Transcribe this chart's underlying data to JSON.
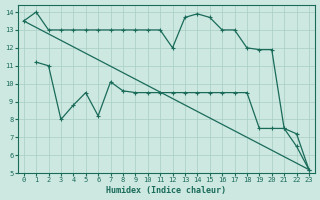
{
  "xlabel": "Humidex (Indice chaleur)",
  "bg_color": "#cce8e0",
  "line_color": "#1a6b5a",
  "grid_color": "#a8cec4",
  "xlim": [
    -0.5,
    23.5
  ],
  "ylim": [
    5,
    14.4
  ],
  "xticks": [
    0,
    1,
    2,
    3,
    4,
    5,
    6,
    7,
    8,
    9,
    10,
    11,
    12,
    13,
    14,
    15,
    16,
    17,
    18,
    19,
    20,
    21,
    22,
    23
  ],
  "yticks": [
    5,
    6,
    7,
    8,
    9,
    10,
    11,
    12,
    13,
    14
  ],
  "line1_x": [
    0,
    1,
    2,
    3,
    4,
    5,
    6,
    7,
    8,
    9,
    10,
    11,
    12,
    13,
    14,
    15,
    16,
    17,
    18,
    19,
    20,
    21,
    22,
    23
  ],
  "line1_y": [
    13.5,
    14.0,
    13.0,
    13.0,
    13.0,
    13.0,
    13.0,
    13.0,
    13.0,
    13.0,
    13.0,
    13.0,
    12.0,
    13.7,
    13.9,
    13.7,
    13.0,
    13.0,
    12.0,
    11.9,
    11.9,
    7.5,
    6.5,
    5.2
  ],
  "line2_x": [
    1,
    2,
    3,
    4,
    5,
    6,
    7,
    8,
    9,
    10,
    11,
    12,
    13,
    14,
    15,
    16,
    17,
    18,
    19,
    20,
    21,
    22,
    23
  ],
  "line2_y": [
    11.2,
    11.0,
    8.0,
    8.8,
    9.5,
    8.2,
    10.1,
    9.6,
    9.5,
    9.5,
    9.5,
    9.5,
    9.5,
    9.5,
    9.5,
    9.5,
    9.5,
    9.5,
    7.5,
    7.5,
    7.5,
    7.2,
    5.2
  ],
  "line3_x": [
    0,
    23
  ],
  "line3_y": [
    13.5,
    5.2
  ]
}
